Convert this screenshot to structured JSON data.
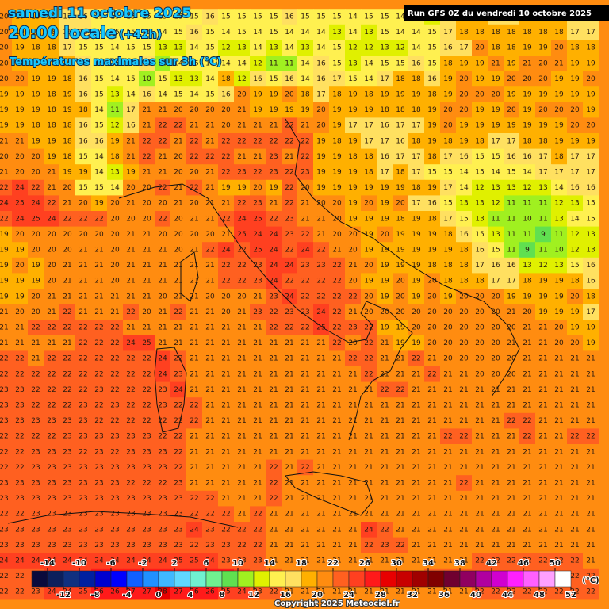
{
  "header": {
    "date": "samedi 11 octobre 2025",
    "time": "20:00 locale",
    "lead": "(+42h)",
    "subtitle": "Températures maximales sur 3h (°C)",
    "run": "Run GFS 0Z du vendredi 10 octobre 2025",
    "copyright": "Copyright 2025 Meteociel.fr"
  },
  "grid": {
    "rows": [
      [
        20,
        19,
        19,
        18,
        17,
        16,
        15,
        15,
        15,
        15,
        15,
        15,
        15,
        16,
        15,
        15,
        15,
        15,
        16,
        15,
        15,
        15,
        14,
        15,
        15,
        14,
        14,
        12,
        17,
        18,
        18,
        17,
        16,
        18,
        18,
        18,
        17,
        17
      ],
      [
        20,
        19,
        19,
        18,
        16,
        16,
        15,
        15,
        15,
        15,
        14,
        15,
        16,
        15,
        14,
        15,
        14,
        15,
        14,
        14,
        14,
        13,
        14,
        13,
        15,
        14,
        14,
        15,
        17,
        18,
        18,
        18,
        18,
        18,
        18,
        18,
        17,
        17
      ],
      [
        20,
        19,
        18,
        18,
        17,
        15,
        15,
        14,
        15,
        15,
        13,
        13,
        14,
        15,
        12,
        13,
        14,
        13,
        14,
        13,
        14,
        15,
        12,
        12,
        13,
        12,
        14,
        15,
        16,
        17,
        20,
        18,
        18,
        19,
        19,
        20,
        18,
        18
      ],
      [
        20,
        19,
        19,
        19,
        19,
        16,
        15,
        15,
        14,
        16,
        10,
        14,
        15,
        14,
        14,
        14,
        12,
        11,
        11,
        14,
        16,
        15,
        13,
        14,
        15,
        15,
        16,
        15,
        18,
        19,
        19,
        21,
        19,
        21,
        20,
        21,
        19,
        19
      ],
      [
        20,
        20,
        19,
        19,
        18,
        16,
        15,
        14,
        15,
        10,
        15,
        13,
        13,
        14,
        18,
        12,
        16,
        15,
        16,
        14,
        16,
        17,
        15,
        14,
        17,
        18,
        18,
        16,
        19,
        20,
        19,
        19,
        20,
        20,
        20,
        19,
        19,
        20
      ],
      [
        19,
        19,
        19,
        18,
        19,
        16,
        15,
        13,
        14,
        16,
        14,
        15,
        14,
        15,
        16,
        20,
        19,
        19,
        20,
        18,
        17,
        18,
        19,
        18,
        19,
        19,
        19,
        18,
        19,
        20,
        20,
        20,
        19,
        19,
        19,
        19,
        19,
        19
      ],
      [
        19,
        19,
        19,
        18,
        19,
        18,
        14,
        11,
        17,
        21,
        21,
        20,
        20,
        20,
        20,
        21,
        19,
        19,
        19,
        19,
        20,
        19,
        19,
        19,
        18,
        18,
        18,
        19,
        20,
        20,
        19,
        19,
        20,
        19,
        20,
        20,
        20,
        19
      ],
      [
        19,
        19,
        18,
        18,
        18,
        16,
        15,
        12,
        16,
        21,
        22,
        22,
        21,
        21,
        20,
        21,
        21,
        21,
        22,
        21,
        20,
        19,
        17,
        17,
        16,
        17,
        17,
        19,
        20,
        19,
        19,
        19,
        19,
        19,
        19,
        19,
        20,
        20
      ],
      [
        21,
        21,
        19,
        19,
        18,
        16,
        16,
        19,
        21,
        22,
        22,
        21,
        22,
        21,
        22,
        22,
        22,
        22,
        22,
        22,
        19,
        18,
        19,
        17,
        17,
        16,
        18,
        19,
        18,
        19,
        18,
        17,
        17,
        18,
        18,
        19,
        19,
        19
      ],
      [
        20,
        20,
        20,
        19,
        18,
        15,
        14,
        18,
        21,
        22,
        21,
        20,
        22,
        22,
        22,
        21,
        21,
        23,
        21,
        22,
        19,
        19,
        18,
        18,
        16,
        17,
        17,
        18,
        17,
        16,
        15,
        15,
        16,
        16,
        17,
        18,
        17,
        17
      ],
      [
        21,
        20,
        20,
        21,
        19,
        19,
        14,
        13,
        19,
        21,
        21,
        20,
        20,
        21,
        22,
        23,
        22,
        23,
        22,
        23,
        19,
        19,
        19,
        18,
        17,
        18,
        17,
        15,
        15,
        14,
        15,
        14,
        15,
        14,
        17,
        17,
        17,
        17
      ],
      [
        22,
        24,
        22,
        21,
        20,
        15,
        15,
        14,
        20,
        20,
        22,
        21,
        22,
        21,
        19,
        19,
        20,
        19,
        22,
        20,
        19,
        19,
        19,
        19,
        19,
        19,
        18,
        19,
        17,
        14,
        12,
        13,
        13,
        12,
        13,
        14,
        16,
        16
      ],
      [
        24,
        25,
        24,
        22,
        21,
        20,
        19,
        20,
        21,
        20,
        20,
        21,
        20,
        21,
        21,
        22,
        23,
        21,
        22,
        21,
        20,
        20,
        19,
        20,
        19,
        20,
        17,
        16,
        15,
        13,
        13,
        12,
        11,
        11,
        11,
        12,
        13,
        15
      ],
      [
        22,
        24,
        25,
        24,
        22,
        22,
        22,
        20,
        20,
        20,
        22,
        20,
        21,
        21,
        22,
        24,
        25,
        22,
        23,
        21,
        21,
        20,
        19,
        19,
        19,
        18,
        19,
        18,
        17,
        15,
        13,
        11,
        11,
        10,
        11,
        13,
        14,
        15
      ],
      [
        19,
        20,
        20,
        20,
        20,
        20,
        20,
        20,
        21,
        21,
        20,
        20,
        20,
        20,
        21,
        25,
        24,
        24,
        23,
        22,
        21,
        20,
        20,
        19,
        20,
        19,
        19,
        19,
        18,
        16,
        15,
        13,
        11,
        11,
        9,
        11,
        12,
        13
      ],
      [
        19,
        19,
        20,
        20,
        20,
        21,
        21,
        20,
        21,
        21,
        21,
        20,
        21,
        22,
        24,
        22,
        25,
        24,
        22,
        24,
        22,
        21,
        20,
        19,
        19,
        19,
        19,
        19,
        19,
        18,
        16,
        15,
        11,
        9,
        11,
        10,
        12,
        13
      ],
      [
        19,
        20,
        19,
        20,
        21,
        21,
        21,
        20,
        21,
        21,
        21,
        21,
        21,
        21,
        22,
        22,
        23,
        24,
        24,
        23,
        23,
        22,
        21,
        20,
        19,
        19,
        19,
        18,
        18,
        18,
        17,
        16,
        16,
        13,
        12,
        13,
        15,
        16
      ],
      [
        19,
        19,
        19,
        20,
        21,
        21,
        21,
        20,
        21,
        21,
        21,
        21,
        21,
        21,
        22,
        22,
        23,
        24,
        22,
        22,
        22,
        22,
        20,
        19,
        19,
        20,
        19,
        20,
        18,
        18,
        18,
        17,
        17,
        18,
        19,
        19,
        18,
        16
      ],
      [
        19,
        19,
        20,
        21,
        21,
        21,
        21,
        21,
        21,
        21,
        20,
        21,
        21,
        20,
        20,
        20,
        21,
        23,
        24,
        22,
        22,
        22,
        22,
        20,
        19,
        20,
        19,
        20,
        19,
        20,
        20,
        20,
        19,
        19,
        19,
        19,
        20,
        18
      ],
      [
        21,
        20,
        20,
        21,
        22,
        21,
        21,
        21,
        22,
        20,
        21,
        22,
        21,
        21,
        20,
        21,
        23,
        22,
        23,
        23,
        24,
        22,
        21,
        20,
        20,
        20,
        20,
        20,
        20,
        20,
        20,
        20,
        21,
        20,
        19,
        19,
        19,
        17
      ],
      [
        21,
        21,
        22,
        22,
        22,
        22,
        22,
        22,
        21,
        21,
        21,
        21,
        21,
        21,
        21,
        21,
        21,
        22,
        22,
        22,
        25,
        22,
        23,
        22,
        19,
        19,
        20,
        20,
        20,
        20,
        20,
        20,
        20,
        21,
        21,
        20,
        19,
        19
      ],
      [
        21,
        21,
        21,
        21,
        21,
        22,
        22,
        22,
        24,
        25,
        21,
        21,
        21,
        21,
        21,
        21,
        21,
        21,
        21,
        21,
        21,
        22,
        20,
        22,
        21,
        19,
        19,
        20,
        20,
        20,
        20,
        20,
        21,
        21,
        21,
        20,
        20,
        19
      ],
      [
        22,
        22,
        21,
        22,
        22,
        22,
        22,
        22,
        22,
        22,
        24,
        22,
        21,
        21,
        21,
        21,
        21,
        21,
        21,
        21,
        21,
        21,
        22,
        22,
        21,
        21,
        22,
        21,
        20,
        20,
        20,
        20,
        20,
        21,
        21,
        21,
        21,
        21
      ],
      [
        22,
        22,
        22,
        22,
        22,
        22,
        22,
        22,
        22,
        22,
        24,
        23,
        21,
        21,
        21,
        21,
        21,
        21,
        21,
        21,
        21,
        21,
        21,
        22,
        21,
        21,
        21,
        22,
        21,
        21,
        20,
        20,
        20,
        21,
        21,
        21,
        21,
        21
      ],
      [
        23,
        23,
        22,
        22,
        22,
        22,
        23,
        22,
        22,
        22,
        23,
        24,
        21,
        21,
        21,
        21,
        21,
        21,
        21,
        21,
        21,
        21,
        21,
        21,
        22,
        22,
        21,
        21,
        21,
        21,
        21,
        21,
        21,
        21,
        21,
        21,
        21,
        21
      ],
      [
        23,
        23,
        22,
        22,
        22,
        23,
        22,
        23,
        22,
        22,
        23,
        22,
        22,
        21,
        21,
        21,
        21,
        21,
        21,
        21,
        21,
        21,
        21,
        21,
        21,
        21,
        21,
        21,
        21,
        21,
        21,
        21,
        21,
        21,
        21,
        21,
        21,
        21
      ],
      [
        23,
        23,
        23,
        23,
        23,
        23,
        22,
        22,
        22,
        22,
        22,
        22,
        22,
        21,
        21,
        21,
        21,
        21,
        21,
        21,
        21,
        21,
        21,
        21,
        21,
        21,
        21,
        21,
        21,
        21,
        21,
        21,
        22,
        22,
        21,
        21,
        21,
        21
      ],
      [
        22,
        22,
        22,
        22,
        23,
        23,
        23,
        23,
        23,
        23,
        22,
        22,
        21,
        21,
        21,
        21,
        21,
        21,
        21,
        21,
        21,
        21,
        21,
        21,
        21,
        21,
        21,
        21,
        22,
        22,
        21,
        21,
        21,
        22,
        21,
        21,
        22,
        22
      ],
      [
        22,
        22,
        23,
        23,
        23,
        22,
        23,
        22,
        23,
        23,
        23,
        22,
        21,
        21,
        21,
        21,
        21,
        21,
        21,
        21,
        21,
        21,
        21,
        21,
        21,
        21,
        21,
        21,
        21,
        21,
        21,
        21,
        21,
        21,
        21,
        21,
        21,
        21
      ],
      [
        22,
        22,
        23,
        23,
        23,
        23,
        23,
        23,
        23,
        23,
        23,
        22,
        21,
        21,
        21,
        21,
        21,
        22,
        21,
        22,
        21,
        21,
        21,
        21,
        21,
        21,
        21,
        21,
        21,
        21,
        21,
        21,
        21,
        21,
        21,
        21,
        21,
        21
      ],
      [
        23,
        23,
        23,
        23,
        23,
        23,
        23,
        23,
        22,
        22,
        22,
        23,
        21,
        21,
        21,
        21,
        21,
        22,
        21,
        21,
        21,
        21,
        21,
        21,
        21,
        21,
        21,
        21,
        21,
        22,
        21,
        21,
        21,
        21,
        21,
        21,
        21,
        21
      ],
      [
        23,
        23,
        23,
        23,
        23,
        23,
        23,
        23,
        23,
        23,
        23,
        23,
        22,
        22,
        21,
        21,
        21,
        22,
        21,
        21,
        21,
        21,
        21,
        21,
        21,
        21,
        21,
        21,
        21,
        21,
        21,
        21,
        21,
        21,
        21,
        21,
        21,
        21
      ],
      [
        22,
        22,
        23,
        23,
        23,
        23,
        23,
        23,
        23,
        23,
        23,
        23,
        22,
        22,
        22,
        21,
        22,
        21,
        21,
        21,
        21,
        21,
        21,
        21,
        21,
        21,
        21,
        21,
        21,
        21,
        21,
        21,
        21,
        21,
        21,
        21,
        21,
        21
      ],
      [
        23,
        23,
        23,
        23,
        23,
        23,
        23,
        23,
        23,
        23,
        23,
        23,
        24,
        23,
        22,
        22,
        22,
        21,
        21,
        21,
        21,
        21,
        21,
        24,
        22,
        21,
        21,
        21,
        21,
        21,
        21,
        21,
        21,
        21,
        21,
        21,
        21,
        21
      ],
      [
        23,
        23,
        23,
        23,
        23,
        23,
        23,
        23,
        23,
        23,
        23,
        23,
        22,
        23,
        23,
        22,
        22,
        21,
        21,
        21,
        21,
        21,
        21,
        22,
        23,
        22,
        21,
        21,
        21,
        21,
        21,
        21,
        21,
        21,
        21,
        21,
        21,
        21
      ],
      [
        24,
        24,
        24,
        24,
        24,
        24,
        24,
        24,
        24,
        24,
        24,
        25,
        25,
        24,
        23,
        23,
        23,
        21,
        21,
        21,
        21,
        21,
        21,
        21,
        21,
        21,
        21,
        21,
        21,
        21,
        22,
        22,
        22,
        22,
        22,
        22,
        22,
        21
      ],
      [
        22,
        22,
        23,
        24,
        25,
        25,
        26,
        26,
        27,
        27,
        27,
        27,
        27,
        27,
        26,
        25,
        23,
        22,
        21,
        21,
        21,
        21,
        21,
        21,
        21,
        21,
        21,
        22,
        22,
        22,
        22,
        22,
        22,
        22,
        22,
        22,
        22,
        22
      ],
      [
        22,
        22,
        23,
        24,
        24,
        25,
        26,
        26,
        27,
        27,
        28,
        27,
        26,
        26,
        25,
        24,
        23,
        22,
        21,
        21,
        21,
        21,
        21,
        21,
        21,
        21,
        21,
        21,
        21,
        21,
        22,
        22,
        22,
        22,
        22,
        22,
        22,
        22
      ]
    ]
  },
  "colorbar": {
    "lim": [
      -16,
      52
    ],
    "unit": "(°C)",
    "ticks": [
      -14,
      -12,
      -10,
      -8,
      -6,
      -4,
      -2,
      0,
      2,
      4,
      6,
      8,
      10,
      12,
      14,
      16,
      18,
      20,
      22,
      24,
      26,
      28,
      30,
      32,
      34,
      36,
      38,
      40,
      42,
      44,
      46,
      48,
      50,
      52
    ],
    "colors": [
      "#0a0a3c",
      "#0c1f5c",
      "#103080",
      "#0020a0",
      "#0000d0",
      "#0000ff",
      "#1060ff",
      "#2090ff",
      "#40b8ff",
      "#60d8ff",
      "#70f0d0",
      "#70f090",
      "#60e050",
      "#a0f020",
      "#e0f000",
      "#fff050",
      "#ffe060",
      "#ffb000",
      "#ff8c10",
      "#ff6020",
      "#ff4020",
      "#ff1a1a",
      "#e80000",
      "#c80000",
      "#a00000",
      "#800000",
      "#700030",
      "#900060",
      "#b000a0",
      "#d000d0",
      "#ff20ff",
      "#ff60ff",
      "#ffa0ff",
      "#ffffff"
    ]
  }
}
